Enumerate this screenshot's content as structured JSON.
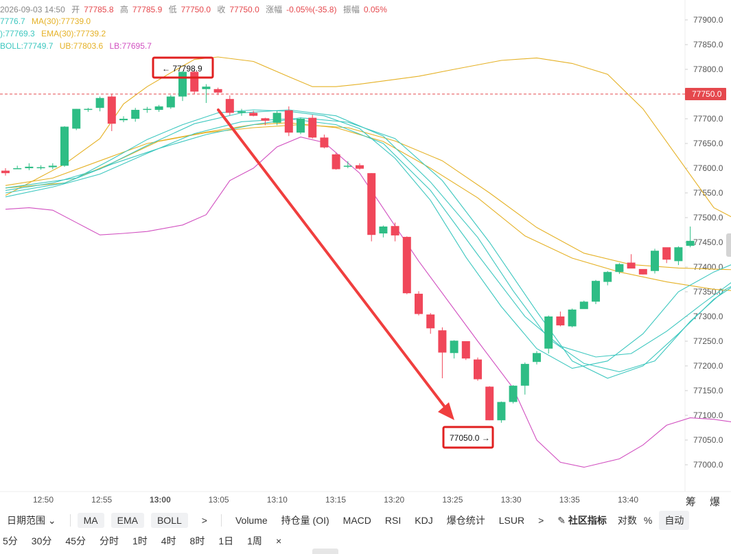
{
  "info": {
    "datetime": "2026-09-03 14:50",
    "open_label": "开",
    "open": "77785.8",
    "high_label": "高",
    "high": "77785.9",
    "low_label": "低",
    "low": "77750.0",
    "close_label": "收",
    "close": "77750.0",
    "change_label": "涨幅",
    "change": "-0.05%(-35.8)",
    "amp_label": "振幅",
    "amp": "0.05%",
    "ma_a": "7776.7",
    "ma30": "MA(30):77739.0",
    "ema_a": "):77769.3",
    "ema30": "EMA(30):77739.2",
    "boll": "BOLL:77749.7",
    "ub": "UB:77803.6",
    "lb": "LB:77695.7"
  },
  "axis": {
    "y_ticks": [
      "77900.0",
      "77850.0",
      "77800.0",
      "77750.0",
      "77700.0",
      "77650.0",
      "77600.0",
      "77550.0",
      "77500.0",
      "77450.0",
      "77400.0",
      "77350.0",
      "77300.0",
      "77250.0",
      "77200.0",
      "77150.0",
      "77100.0",
      "77050.0",
      "77000.0"
    ],
    "x_ticks": [
      "12:50",
      "12:55",
      "13:00",
      "13:05",
      "13:10",
      "13:15",
      "13:20",
      "13:25",
      "13:30",
      "13:35",
      "13:40"
    ],
    "current_price": "77750.0"
  },
  "annotations": {
    "high_marker": "← 77798.9",
    "low_marker": "77050.0 →"
  },
  "corner_text": "筹 爆",
  "toolbar1": {
    "range": "日期范围",
    "pills": [
      "MA",
      "EMA",
      "BOLL"
    ],
    "more1": ">",
    "items": [
      "Volume",
      "持仓量 (OI)",
      "MACD",
      "RSI",
      "KDJ",
      "爆仓统计",
      "LSUR"
    ],
    "more2": ">",
    "community": "社区指标",
    "compare": "对数",
    "percent": "%",
    "auto": "自动"
  },
  "toolbar2": {
    "intervals": [
      "5分",
      "30分",
      "45分",
      "分时",
      "1时",
      "4时",
      "8时",
      "1日",
      "1周"
    ],
    "close": "×"
  },
  "colors": {
    "up": "#2ebd85",
    "down": "#f0475a",
    "ma": "#e5b125",
    "ema": "#3cc7bf",
    "lb": "#d14fc0",
    "arrow": "#f03e3e"
  },
  "chart_data": {
    "type": "candlestick",
    "x_start": "12:46",
    "interval_minutes": 1,
    "ylim": [
      76960,
      77930
    ],
    "candles": [
      [
        77595,
        77600,
        77585,
        77590
      ],
      [
        77600,
        77605,
        77598,
        77600
      ],
      [
        77600,
        77610,
        77596,
        77603
      ],
      [
        77600,
        77606,
        77597,
        77602
      ],
      [
        77602,
        77610,
        77598,
        77605
      ],
      [
        77605,
        77685,
        77603,
        77684
      ],
      [
        77680,
        77720,
        77677,
        77720
      ],
      [
        77718,
        77722,
        77714,
        77720
      ],
      [
        77722,
        77745,
        77715,
        77742
      ],
      [
        77745,
        77750,
        77675,
        77690
      ],
      [
        77697,
        77705,
        77693,
        77700
      ],
      [
        77700,
        77722,
        77694,
        77718
      ],
      [
        77718,
        77724,
        77712,
        77720
      ],
      [
        77718,
        77728,
        77714,
        77725
      ],
      [
        77723,
        77748,
        77720,
        77745
      ],
      [
        77745,
        77797,
        77736,
        77795
      ],
      [
        77795,
        77800,
        77750,
        77755
      ],
      [
        77760,
        77770,
        77732,
        77765
      ],
      [
        77760,
        77763,
        77748,
        77753
      ],
      [
        77740,
        77747,
        77707,
        77712
      ],
      [
        77712,
        77720,
        77706,
        77715
      ],
      [
        77712,
        77716,
        77705,
        77706
      ],
      [
        77701,
        77702,
        77687,
        77696
      ],
      [
        77692,
        77716,
        77687,
        77712
      ],
      [
        77717,
        77725,
        77665,
        77672
      ],
      [
        77672,
        77702,
        77669,
        77700
      ],
      [
        77702,
        77708,
        77660,
        77662
      ],
      [
        77662,
        77668,
        77640,
        77642
      ],
      [
        77628,
        77631,
        77597,
        77598
      ],
      [
        77603,
        77614,
        77600,
        77605
      ],
      [
        77606,
        77610,
        77597,
        77599
      ],
      [
        77590,
        77590,
        77452,
        77465
      ],
      [
        77468,
        77484,
        77460,
        77482
      ],
      [
        77483,
        77490,
        77452,
        77464
      ],
      [
        77461,
        77462,
        77345,
        77347
      ],
      [
        77346,
        77351,
        77302,
        77305
      ],
      [
        77304,
        77307,
        77265,
        77276
      ],
      [
        77272,
        77278,
        77175,
        77227
      ],
      [
        77226,
        77252,
        77215,
        77251
      ],
      [
        77250,
        77250,
        77212,
        77215
      ],
      [
        77213,
        77217,
        77170,
        77173
      ],
      [
        77158,
        77159,
        77090,
        77090
      ],
      [
        77090,
        77128,
        77085,
        77127
      ],
      [
        77127,
        77161,
        77124,
        77160
      ],
      [
        77160,
        77207,
        77142,
        77204
      ],
      [
        77208,
        77230,
        77203,
        77226
      ],
      [
        77235,
        77302,
        77225,
        77300
      ],
      [
        77300,
        77310,
        77280,
        77282
      ],
      [
        77280,
        77316,
        77278,
        77314
      ],
      [
        77315,
        77332,
        77318,
        77330
      ],
      [
        77330,
        77374,
        77325,
        77372
      ],
      [
        77370,
        77392,
        77363,
        77390
      ],
      [
        77390,
        77408,
        77386,
        77406
      ],
      [
        77409,
        77426,
        77400,
        77397
      ],
      [
        77396,
        77394,
        77385,
        77385
      ],
      [
        77392,
        77437,
        77387,
        77433
      ],
      [
        77440,
        77435,
        77408,
        77415
      ],
      [
        77412,
        77442,
        77404,
        77440
      ],
      [
        77443,
        77482,
        77440,
        77453
      ]
    ],
    "ub_series": [
      [
        0,
        77545
      ],
      [
        5,
        77608
      ],
      [
        8,
        77660
      ],
      [
        10,
        77730
      ],
      [
        12,
        77765
      ],
      [
        14,
        77793
      ],
      [
        16,
        77820
      ],
      [
        18,
        77825
      ],
      [
        21,
        77816
      ],
      [
        24,
        77785
      ],
      [
        26,
        77765
      ],
      [
        28,
        77765
      ],
      [
        30,
        77770
      ],
      [
        35,
        77786
      ],
      [
        38,
        77800
      ],
      [
        42,
        77818
      ],
      [
        45,
        77823
      ],
      [
        48,
        77812
      ],
      [
        51,
        77790
      ],
      [
        54,
        77720
      ],
      [
        57,
        77620
      ],
      [
        60,
        77520
      ],
      [
        62,
        77495
      ],
      [
        64,
        77460
      ],
      [
        66,
        77446
      ],
      [
        68,
        77461
      ],
      [
        70,
        77500
      ],
      [
        72,
        77532
      ]
    ],
    "lb_series": [
      [
        0,
        77517
      ],
      [
        2,
        77520
      ],
      [
        4,
        77515
      ],
      [
        6,
        77490
      ],
      [
        8,
        77465
      ],
      [
        10,
        77468
      ],
      [
        12,
        77472
      ],
      [
        15,
        77485
      ],
      [
        17,
        77506
      ],
      [
        19,
        77575
      ],
      [
        21,
        77600
      ],
      [
        23,
        77643
      ],
      [
        25,
        77663
      ],
      [
        27,
        77652
      ],
      [
        30,
        77590
      ],
      [
        35,
        77412
      ],
      [
        40,
        77250
      ],
      [
        43,
        77155
      ],
      [
        45,
        77050
      ],
      [
        47,
        77005
      ],
      [
        49,
        76995
      ],
      [
        52,
        77012
      ],
      [
        54,
        77040
      ],
      [
        56,
        77080
      ],
      [
        58,
        77095
      ],
      [
        60,
        77092
      ],
      [
        62,
        77085
      ],
      [
        64,
        77083
      ],
      [
        66,
        77087
      ]
    ],
    "ma_series": [
      [
        0,
        77565
      ],
      [
        4,
        77580
      ],
      [
        8,
        77615
      ],
      [
        12,
        77650
      ],
      [
        17,
        77672
      ],
      [
        21,
        77682
      ],
      [
        25,
        77688
      ],
      [
        29,
        77682
      ],
      [
        33,
        77655
      ],
      [
        37,
        77615
      ],
      [
        41,
        77550
      ],
      [
        45,
        77480
      ],
      [
        49,
        77428
      ],
      [
        53,
        77405
      ],
      [
        57,
        77398
      ],
      [
        61,
        77395
      ],
      [
        65,
        77393
      ],
      [
        68,
        77398
      ],
      [
        72,
        77392
      ]
    ],
    "ema_series": [
      [
        0,
        77560
      ],
      [
        5,
        77570
      ],
      [
        9,
        77610
      ],
      [
        13,
        77655
      ],
      [
        17,
        77673
      ],
      [
        21,
        77688
      ],
      [
        24,
        77692
      ],
      [
        28,
        77682
      ],
      [
        32,
        77654
      ],
      [
        36,
        77600
      ],
      [
        40,
        77540
      ],
      [
        44,
        77463
      ],
      [
        48,
        77418
      ],
      [
        52,
        77390
      ],
      [
        56,
        77370
      ],
      [
        60,
        77355
      ],
      [
        64,
        77348
      ],
      [
        68,
        77340
      ],
      [
        72,
        77335
      ]
    ],
    "ema2_series": [
      [
        0,
        77560
      ],
      [
        3,
        77570
      ],
      [
        6,
        77580
      ],
      [
        9,
        77618
      ],
      [
        12,
        77658
      ],
      [
        15,
        77688
      ],
      [
        18,
        77712
      ],
      [
        21,
        77718
      ],
      [
        24,
        77715
      ],
      [
        27,
        77706
      ],
      [
        30,
        77680
      ],
      [
        33,
        77620
      ],
      [
        36,
        77535
      ],
      [
        39,
        77420
      ],
      [
        42,
        77320
      ],
      [
        45,
        77235
      ],
      [
        48,
        77195
      ],
      [
        51,
        77210
      ],
      [
        54,
        77265
      ],
      [
        57,
        77350
      ],
      [
        60,
        77390
      ],
      [
        63,
        77420
      ],
      [
        66,
        77420
      ]
    ],
    "ema3_series": [
      [
        0,
        77555
      ],
      [
        4,
        77570
      ],
      [
        8,
        77598
      ],
      [
        12,
        77646
      ],
      [
        16,
        77690
      ],
      [
        20,
        77712
      ],
      [
        24,
        77718
      ],
      [
        28,
        77706
      ],
      [
        32,
        77665
      ],
      [
        36,
        77572
      ],
      [
        40,
        77460
      ],
      [
        43,
        77352
      ],
      [
        46,
        77255
      ],
      [
        49,
        77205
      ],
      [
        52,
        77188
      ],
      [
        55,
        77210
      ],
      [
        58,
        77290
      ],
      [
        61,
        77355
      ],
      [
        64,
        77392
      ],
      [
        66,
        77416
      ]
    ],
    "ma_fast_series": [
      [
        0,
        77550
      ],
      [
        5,
        77570
      ],
      [
        9,
        77608
      ],
      [
        13,
        77640
      ],
      [
        17,
        77668
      ],
      [
        21,
        77688
      ],
      [
        25,
        77702
      ],
      [
        29,
        77693
      ],
      [
        33,
        77660
      ],
      [
        37,
        77575
      ],
      [
        41,
        77450
      ],
      [
        45,
        77310
      ],
      [
        48,
        77210
      ],
      [
        51,
        77175
      ],
      [
        54,
        77200
      ],
      [
        57,
        77265
      ],
      [
        60,
        77335
      ],
      [
        63,
        77383
      ],
      [
        66,
        77405
      ]
    ],
    "boll_mid_series": [
      [
        0,
        77542
      ],
      [
        4,
        77562
      ],
      [
        8,
        77588
      ],
      [
        12,
        77630
      ],
      [
        16,
        77670
      ],
      [
        20,
        77694
      ],
      [
        24,
        77700
      ],
      [
        28,
        77688
      ],
      [
        32,
        77650
      ],
      [
        36,
        77555
      ],
      [
        40,
        77425
      ],
      [
        44,
        77300
      ],
      [
        47,
        77240
      ],
      [
        50,
        77218
      ],
      [
        53,
        77225
      ],
      [
        56,
        77270
      ],
      [
        59,
        77325
      ],
      [
        62,
        77378
      ],
      [
        65,
        77405
      ],
      [
        66,
        77412
      ]
    ]
  }
}
